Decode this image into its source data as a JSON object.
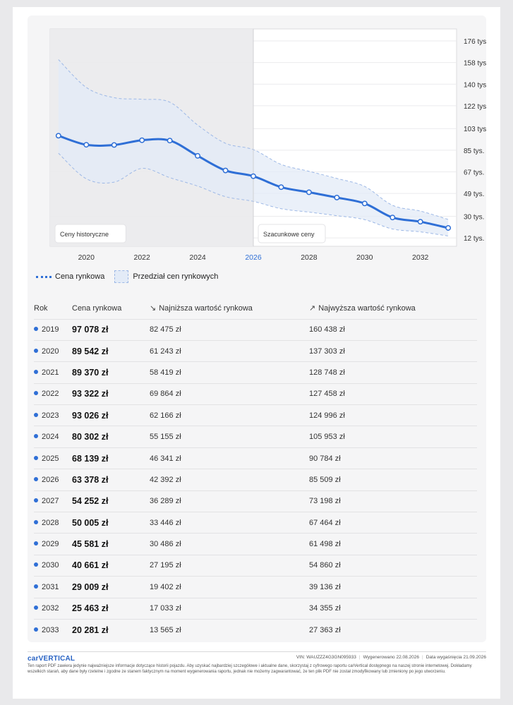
{
  "chart_data": {
    "type": "line",
    "x": [
      2019,
      2020,
      2021,
      2022,
      2023,
      2024,
      2025,
      2026,
      2027,
      2028,
      2029,
      2030,
      2031,
      2032,
      2033
    ],
    "series": [
      {
        "name": "Cena rynkowa",
        "values": [
          97078,
          89542,
          89370,
          93322,
          93026,
          80302,
          68139,
          63378,
          54252,
          50005,
          45581,
          40661,
          29009,
          25463,
          20281
        ]
      },
      {
        "name": "Przedział cen rynkowych",
        "low": [
          82475,
          61243,
          58419,
          69864,
          62166,
          55155,
          46341,
          42392,
          36289,
          33446,
          30486,
          27195,
          19402,
          17033,
          13565
        ],
        "high": [
          160438,
          137303,
          128748,
          127458,
          124996,
          105953,
          90784,
          85509,
          73198,
          67464,
          61498,
          54860,
          39136,
          34355,
          27363
        ]
      }
    ],
    "x_tick_labels": [
      "2020",
      "2022",
      "2024",
      "2026",
      "2028",
      "2030",
      "2032"
    ],
    "y_tick_labels": [
      "176 tys.",
      "158 tys.",
      "140 tys.",
      "122 tys.",
      "103 tys.",
      "85 tys.",
      "67 tys.",
      "49 tys.",
      "30 tys.",
      "12 tys."
    ],
    "highlight_x_label": "2026",
    "region_labels": {
      "historical": "Ceny historyczne",
      "forecast": "Szacunkowe ceny"
    },
    "colors": {
      "line": "#2f6fd6",
      "band": "#e3ebf7",
      "band_edge": "#9db8e6",
      "historical_bg": "#ececee",
      "highlight": "#2f6fd6"
    },
    "legend": "bottom-left"
  },
  "legend": {
    "line_label": "Cena rynkowa",
    "band_label": "Przedział cen rynkowych"
  },
  "table": {
    "headers": {
      "year": "Rok",
      "price": "Cena rynkowa",
      "low": "Najniższa wartość rynkowa",
      "high": "Najwyższa wartość rynkowa"
    },
    "rows": [
      {
        "year": "2019",
        "price": "97 078 zł",
        "low": "82 475 zł",
        "high": "160 438 zł"
      },
      {
        "year": "2020",
        "price": "89 542 zł",
        "low": "61 243 zł",
        "high": "137 303 zł"
      },
      {
        "year": "2021",
        "price": "89 370 zł",
        "low": "58 419 zł",
        "high": "128 748 zł"
      },
      {
        "year": "2022",
        "price": "93 322 zł",
        "low": "69 864 zł",
        "high": "127 458 zł"
      },
      {
        "year": "2023",
        "price": "93 026 zł",
        "low": "62 166 zł",
        "high": "124 996 zł"
      },
      {
        "year": "2024",
        "price": "80 302 zł",
        "low": "55 155 zł",
        "high": "105 953 zł"
      },
      {
        "year": "2025",
        "price": "68 139 zł",
        "low": "46 341 zł",
        "high": "90 784 zł"
      },
      {
        "year": "2026",
        "price": "63 378 zł",
        "low": "42 392 zł",
        "high": "85 509 zł"
      },
      {
        "year": "2027",
        "price": "54 252 zł",
        "low": "36 289 zł",
        "high": "73 198 zł"
      },
      {
        "year": "2028",
        "price": "50 005 zł",
        "low": "33 446 zł",
        "high": "67 464 zł"
      },
      {
        "year": "2029",
        "price": "45 581 zł",
        "low": "30 486 zł",
        "high": "61 498 zł"
      },
      {
        "year": "2030",
        "price": "40 661 zł",
        "low": "27 195 zł",
        "high": "54 860 zł"
      },
      {
        "year": "2031",
        "price": "29 009 zł",
        "low": "19 402 zł",
        "high": "39 136 zł"
      },
      {
        "year": "2032",
        "price": "25 463 zł",
        "low": "17 033 zł",
        "high": "34 355 zł"
      },
      {
        "year": "2033",
        "price": "20 281 zł",
        "low": "13 565 zł",
        "high": "27 363 zł"
      }
    ]
  },
  "footer": {
    "logo": "carVERTICAL",
    "vin": "VIN:  WAUZZZ4G3GN095933",
    "generated": "Wygenerowano  22.08.2026",
    "expires": "Data wygaśnięcia  21.09.2026",
    "disclaimer": "Ten raport PDF zawiera jedynie najważniejsze informacje dotyczące historii pojazdu. Aby uzyskać najbardziej szczegółowe i aktualne dane, skorzystaj z cyfrowego raportu carVertical dostępnego na naszej stronie internetowej. Dokładamy wszelkich starań, aby dane były rzetelne i zgodne ze stanem faktycznym na moment wygenerowania raportu, jednak nie możemy zagwarantować, że ten plik PDF nie został zmodyfikowany lub zmieniony po jego utworzeniu."
  }
}
